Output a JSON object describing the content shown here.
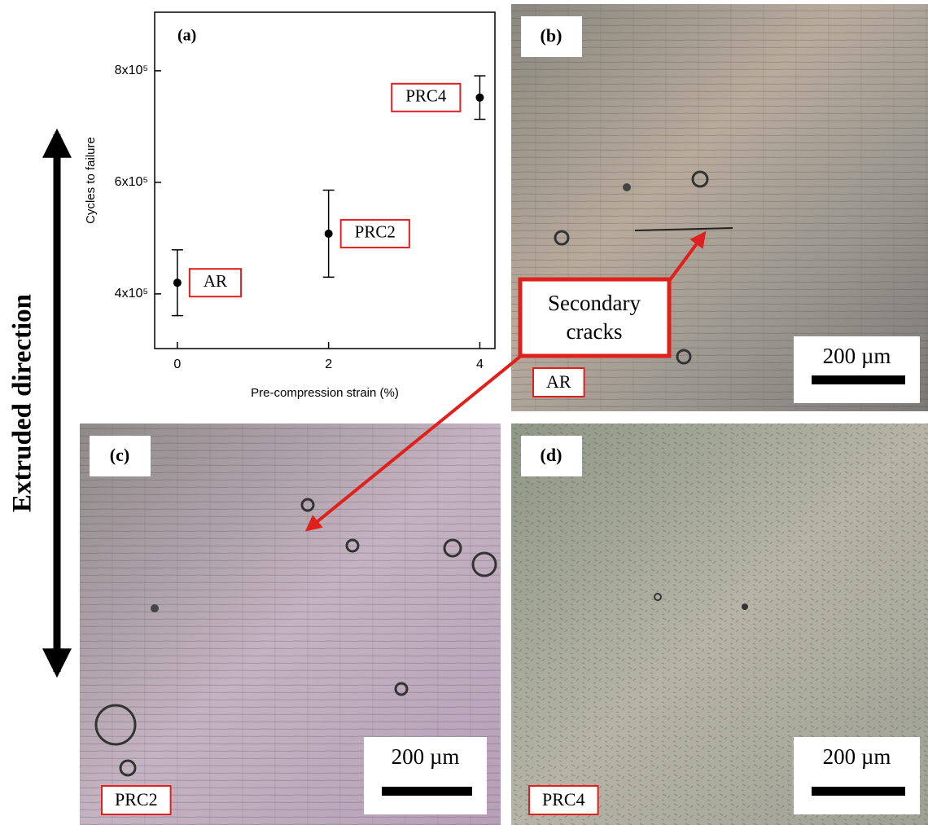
{
  "chart_data": {
    "type": "scatter",
    "panel_label": "(a)",
    "xlabel": "Pre-compression strain (%)",
    "ylabel": "Cycles to failure",
    "x": [
      0,
      2,
      4
    ],
    "values": [
      420000,
      508000,
      752000
    ],
    "errors": [
      59000,
      78000,
      39000
    ],
    "labels": [
      "AR",
      "PRC2",
      "PRC4"
    ],
    "color": "#000000",
    "label_color": "#e02020",
    "xlim": [
      -0.3,
      4.2
    ],
    "xticks": [
      0,
      2,
      4
    ],
    "ylim": [
      302000,
      905000
    ],
    "yticks": [
      {
        "value": 400000,
        "label": "4x10⁵"
      },
      {
        "value": 600000,
        "label": "6x10⁵"
      },
      {
        "value": 800000,
        "label": "8x10⁵"
      }
    ]
  },
  "side_label": "Extruded direction",
  "callout": {
    "lines": [
      "Secondary",
      "cracks"
    ]
  },
  "panels": [
    {
      "label": "(b)",
      "sample": "AR",
      "scale": "200 µm"
    },
    {
      "label": "(c)",
      "sample": "PRC2",
      "scale": "200 µm"
    },
    {
      "label": "(d)",
      "sample": "PRC4",
      "scale": "200 µm"
    }
  ]
}
